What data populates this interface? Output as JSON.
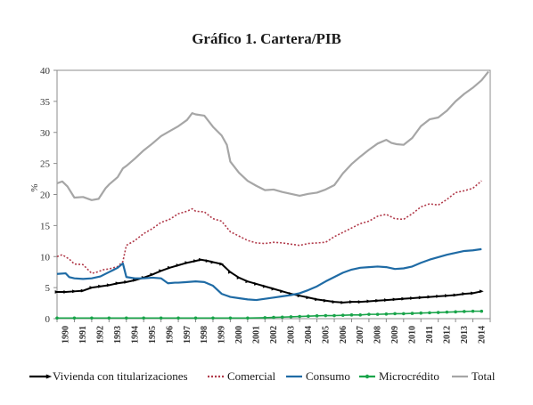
{
  "chart_data": {
    "type": "line",
    "title": "Gráfico 1. Cartera/PIB",
    "ylabel": "%",
    "xlabel": "",
    "ylim": [
      0,
      40
    ],
    "yticks": [
      0,
      5,
      10,
      15,
      20,
      25,
      30,
      35,
      40
    ],
    "xlim": [
      1990,
      2015
    ],
    "xticks": [
      1990,
      1991,
      1992,
      1993,
      1994,
      1995,
      1996,
      1997,
      1998,
      1999,
      2000,
      2001,
      2002,
      2003,
      2004,
      2005,
      2006,
      2007,
      2008,
      2009,
      2010,
      2011,
      2012,
      2013,
      2014
    ],
    "grid": false,
    "legend": "bottom",
    "series": [
      {
        "name": "Vivienda con titularizaciones",
        "color": "#000000",
        "marker": "arrow",
        "points": [
          [
            1990.0,
            4.3
          ],
          [
            1990.5,
            4.3
          ],
          [
            1991.0,
            4.4
          ],
          [
            1991.5,
            4.5
          ],
          [
            1992.0,
            5.0
          ],
          [
            1992.5,
            5.2
          ],
          [
            1993.0,
            5.4
          ],
          [
            1993.5,
            5.7
          ],
          [
            1994.0,
            5.9
          ],
          [
            1994.5,
            6.2
          ],
          [
            1995.0,
            6.6
          ],
          [
            1995.5,
            7.1
          ],
          [
            1996.0,
            7.7
          ],
          [
            1996.5,
            8.2
          ],
          [
            1997.0,
            8.6
          ],
          [
            1997.5,
            9.0
          ],
          [
            1998.0,
            9.3
          ],
          [
            1998.3,
            9.5
          ],
          [
            1998.7,
            9.3
          ],
          [
            1999.0,
            9.1
          ],
          [
            1999.5,
            8.8
          ],
          [
            2000.0,
            7.5
          ],
          [
            2000.5,
            6.6
          ],
          [
            2001.0,
            6.0
          ],
          [
            2001.5,
            5.6
          ],
          [
            2002.0,
            5.2
          ],
          [
            2002.5,
            4.8
          ],
          [
            2003.0,
            4.4
          ],
          [
            2003.5,
            4.0
          ],
          [
            2004.0,
            3.7
          ],
          [
            2004.5,
            3.4
          ],
          [
            2005.0,
            3.1
          ],
          [
            2005.5,
            2.9
          ],
          [
            2006.0,
            2.7
          ],
          [
            2006.5,
            2.6
          ],
          [
            2007.0,
            2.7
          ],
          [
            2007.5,
            2.7
          ],
          [
            2008.0,
            2.8
          ],
          [
            2008.5,
            2.9
          ],
          [
            2009.0,
            3.0
          ],
          [
            2009.5,
            3.1
          ],
          [
            2010.0,
            3.2
          ],
          [
            2010.5,
            3.3
          ],
          [
            2011.0,
            3.4
          ],
          [
            2011.5,
            3.5
          ],
          [
            2012.0,
            3.6
          ],
          [
            2012.5,
            3.7
          ],
          [
            2013.0,
            3.8
          ],
          [
            2013.5,
            4.0
          ],
          [
            2014.0,
            4.1
          ],
          [
            2014.5,
            4.4
          ]
        ]
      },
      {
        "name": "Comercial",
        "color": "#b13a4a",
        "marker": "dots",
        "points": [
          [
            1990.0,
            10.0
          ],
          [
            1990.3,
            10.3
          ],
          [
            1990.7,
            9.6
          ],
          [
            1991.0,
            8.8
          ],
          [
            1991.5,
            8.7
          ],
          [
            1992.0,
            7.3
          ],
          [
            1992.3,
            7.5
          ],
          [
            1992.7,
            7.9
          ],
          [
            1993.0,
            8.0
          ],
          [
            1993.5,
            8.4
          ],
          [
            1993.8,
            9.2
          ],
          [
            1994.0,
            11.8
          ],
          [
            1994.5,
            12.6
          ],
          [
            1995.0,
            13.7
          ],
          [
            1995.5,
            14.5
          ],
          [
            1996.0,
            15.5
          ],
          [
            1996.5,
            16.0
          ],
          [
            1997.0,
            16.9
          ],
          [
            1997.5,
            17.3
          ],
          [
            1997.8,
            17.7
          ],
          [
            1998.0,
            17.3
          ],
          [
            1998.5,
            17.2
          ],
          [
            1999.0,
            16.1
          ],
          [
            1999.5,
            15.7
          ],
          [
            2000.0,
            14.0
          ],
          [
            2000.5,
            13.3
          ],
          [
            2001.0,
            12.6
          ],
          [
            2001.5,
            12.2
          ],
          [
            2002.0,
            12.1
          ],
          [
            2002.5,
            12.3
          ],
          [
            2003.0,
            12.2
          ],
          [
            2003.5,
            12.0
          ],
          [
            2004.0,
            11.8
          ],
          [
            2004.5,
            12.1
          ],
          [
            2005.0,
            12.2
          ],
          [
            2005.5,
            12.3
          ],
          [
            2006.0,
            13.2
          ],
          [
            2006.5,
            13.9
          ],
          [
            2007.0,
            14.6
          ],
          [
            2007.5,
            15.3
          ],
          [
            2008.0,
            15.7
          ],
          [
            2008.5,
            16.5
          ],
          [
            2009.0,
            16.8
          ],
          [
            2009.5,
            16.1
          ],
          [
            2010.0,
            16.0
          ],
          [
            2010.5,
            16.9
          ],
          [
            2011.0,
            18.0
          ],
          [
            2011.5,
            18.5
          ],
          [
            2012.0,
            18.3
          ],
          [
            2012.5,
            19.2
          ],
          [
            2013.0,
            20.3
          ],
          [
            2013.5,
            20.6
          ],
          [
            2014.0,
            21.0
          ],
          [
            2014.5,
            22.2
          ]
        ]
      },
      {
        "name": "Consumo",
        "color": "#1f6ba5",
        "marker": "none",
        "points": [
          [
            1990.0,
            7.2
          ],
          [
            1990.5,
            7.3
          ],
          [
            1990.7,
            6.7
          ],
          [
            1991.0,
            6.5
          ],
          [
            1991.5,
            6.4
          ],
          [
            1992.0,
            6.5
          ],
          [
            1992.5,
            6.8
          ],
          [
            1993.0,
            7.5
          ],
          [
            1993.5,
            8.2
          ],
          [
            1993.8,
            8.9
          ],
          [
            1994.0,
            6.7
          ],
          [
            1994.5,
            6.5
          ],
          [
            1995.0,
            6.5
          ],
          [
            1995.5,
            6.6
          ],
          [
            1996.0,
            6.5
          ],
          [
            1996.4,
            5.7
          ],
          [
            1996.8,
            5.8
          ],
          [
            1997.0,
            5.8
          ],
          [
            1997.5,
            5.9
          ],
          [
            1998.0,
            6.0
          ],
          [
            1998.5,
            5.9
          ],
          [
            1999.0,
            5.3
          ],
          [
            1999.5,
            4.0
          ],
          [
            2000.0,
            3.5
          ],
          [
            2000.5,
            3.3
          ],
          [
            2001.0,
            3.1
          ],
          [
            2001.5,
            3.0
          ],
          [
            2002.0,
            3.2
          ],
          [
            2002.5,
            3.4
          ],
          [
            2003.0,
            3.6
          ],
          [
            2003.5,
            3.8
          ],
          [
            2004.0,
            4.1
          ],
          [
            2004.5,
            4.6
          ],
          [
            2005.0,
            5.2
          ],
          [
            2005.5,
            6.0
          ],
          [
            2006.0,
            6.7
          ],
          [
            2006.5,
            7.4
          ],
          [
            2007.0,
            7.9
          ],
          [
            2007.5,
            8.2
          ],
          [
            2008.0,
            8.3
          ],
          [
            2008.5,
            8.4
          ],
          [
            2009.0,
            8.3
          ],
          [
            2009.5,
            8.0
          ],
          [
            2010.0,
            8.1
          ],
          [
            2010.5,
            8.4
          ],
          [
            2011.0,
            9.0
          ],
          [
            2011.5,
            9.5
          ],
          [
            2012.0,
            9.9
          ],
          [
            2012.5,
            10.3
          ],
          [
            2013.0,
            10.6
          ],
          [
            2013.5,
            10.9
          ],
          [
            2014.0,
            11.0
          ],
          [
            2014.5,
            11.2
          ]
        ]
      },
      {
        "name": "Microcrédito",
        "color": "#19a44a",
        "marker": "dots",
        "points": [
          [
            1990.0,
            0.1
          ],
          [
            1991.0,
            0.1
          ],
          [
            1992.0,
            0.1
          ],
          [
            1993.0,
            0.1
          ],
          [
            1994.0,
            0.1
          ],
          [
            1995.0,
            0.1
          ],
          [
            1996.0,
            0.1
          ],
          [
            1997.0,
            0.1
          ],
          [
            1998.0,
            0.1
          ],
          [
            1999.0,
            0.1
          ],
          [
            2000.0,
            0.1
          ],
          [
            2001.0,
            0.1
          ],
          [
            2002.0,
            0.15
          ],
          [
            2002.5,
            0.2
          ],
          [
            2003.0,
            0.25
          ],
          [
            2003.5,
            0.3
          ],
          [
            2004.0,
            0.35
          ],
          [
            2004.5,
            0.4
          ],
          [
            2005.0,
            0.45
          ],
          [
            2005.5,
            0.5
          ],
          [
            2006.0,
            0.5
          ],
          [
            2006.5,
            0.55
          ],
          [
            2007.0,
            0.6
          ],
          [
            2007.5,
            0.6
          ],
          [
            2008.0,
            0.7
          ],
          [
            2008.5,
            0.7
          ],
          [
            2009.0,
            0.75
          ],
          [
            2009.5,
            0.8
          ],
          [
            2010.0,
            0.8
          ],
          [
            2010.5,
            0.85
          ],
          [
            2011.0,
            0.9
          ],
          [
            2011.5,
            0.95
          ],
          [
            2012.0,
            1.0
          ],
          [
            2012.5,
            1.05
          ],
          [
            2013.0,
            1.1
          ],
          [
            2013.5,
            1.15
          ],
          [
            2014.0,
            1.2
          ],
          [
            2014.5,
            1.2
          ]
        ]
      },
      {
        "name": "Total",
        "color": "#a6a6a6",
        "marker": "none",
        "points": [
          [
            1990.0,
            21.8
          ],
          [
            1990.3,
            22.1
          ],
          [
            1990.6,
            21.3
          ],
          [
            1991.0,
            19.5
          ],
          [
            1991.5,
            19.6
          ],
          [
            1992.0,
            19.1
          ],
          [
            1992.4,
            19.3
          ],
          [
            1992.8,
            21.0
          ],
          [
            1993.0,
            21.6
          ],
          [
            1993.5,
            22.8
          ],
          [
            1993.8,
            24.2
          ],
          [
            1994.0,
            24.6
          ],
          [
            1994.5,
            25.8
          ],
          [
            1995.0,
            27.1
          ],
          [
            1995.5,
            28.2
          ],
          [
            1996.0,
            29.4
          ],
          [
            1996.5,
            30.2
          ],
          [
            1997.0,
            31.0
          ],
          [
            1997.5,
            32.0
          ],
          [
            1997.8,
            33.1
          ],
          [
            1998.0,
            32.9
          ],
          [
            1998.5,
            32.7
          ],
          [
            1999.0,
            30.9
          ],
          [
            1999.5,
            29.5
          ],
          [
            1999.8,
            28.0
          ],
          [
            2000.0,
            25.3
          ],
          [
            2000.5,
            23.5
          ],
          [
            2001.0,
            22.2
          ],
          [
            2001.5,
            21.4
          ],
          [
            2002.0,
            20.7
          ],
          [
            2002.5,
            20.8
          ],
          [
            2003.0,
            20.4
          ],
          [
            2003.5,
            20.1
          ],
          [
            2004.0,
            19.8
          ],
          [
            2004.5,
            20.1
          ],
          [
            2005.0,
            20.3
          ],
          [
            2005.5,
            20.8
          ],
          [
            2006.0,
            21.5
          ],
          [
            2006.5,
            23.4
          ],
          [
            2007.0,
            24.9
          ],
          [
            2007.5,
            26.1
          ],
          [
            2008.0,
            27.2
          ],
          [
            2008.5,
            28.2
          ],
          [
            2009.0,
            28.8
          ],
          [
            2009.3,
            28.3
          ],
          [
            2009.6,
            28.1
          ],
          [
            2010.0,
            28.0
          ],
          [
            2010.5,
            29.1
          ],
          [
            2011.0,
            31.0
          ],
          [
            2011.5,
            32.1
          ],
          [
            2012.0,
            32.4
          ],
          [
            2012.5,
            33.5
          ],
          [
            2013.0,
            35.0
          ],
          [
            2013.5,
            36.2
          ],
          [
            2014.0,
            37.2
          ],
          [
            2014.5,
            38.4
          ],
          [
            2014.9,
            39.8
          ]
        ]
      }
    ]
  }
}
